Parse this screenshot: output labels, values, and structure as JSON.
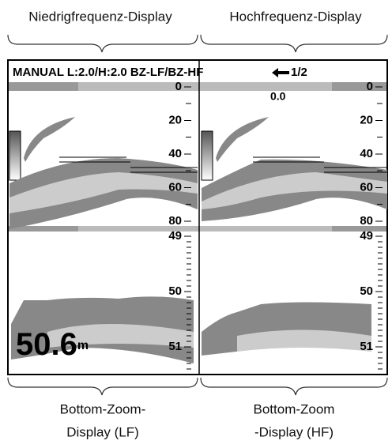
{
  "top_labels": {
    "left": "Niedrigfrequenz-Display",
    "right": "Hochfrequenz-Display"
  },
  "screen": {
    "header": "MANUAL L:2.0/H:2.0 BZ-LF/BZ-HF",
    "page": "1/2",
    "offset": "0.0",
    "depth_scale": [
      "0",
      "20",
      "40",
      "60",
      "80"
    ],
    "zoom_scale": [
      "49",
      "50",
      "51"
    ],
    "depth": "50.6",
    "depth_unit": "m"
  },
  "bottom_labels": {
    "left": [
      "Bottom-Zoom-",
      "Display (LF)"
    ],
    "right": [
      "Bottom-Zoom",
      "-Display (HF)"
    ]
  }
}
